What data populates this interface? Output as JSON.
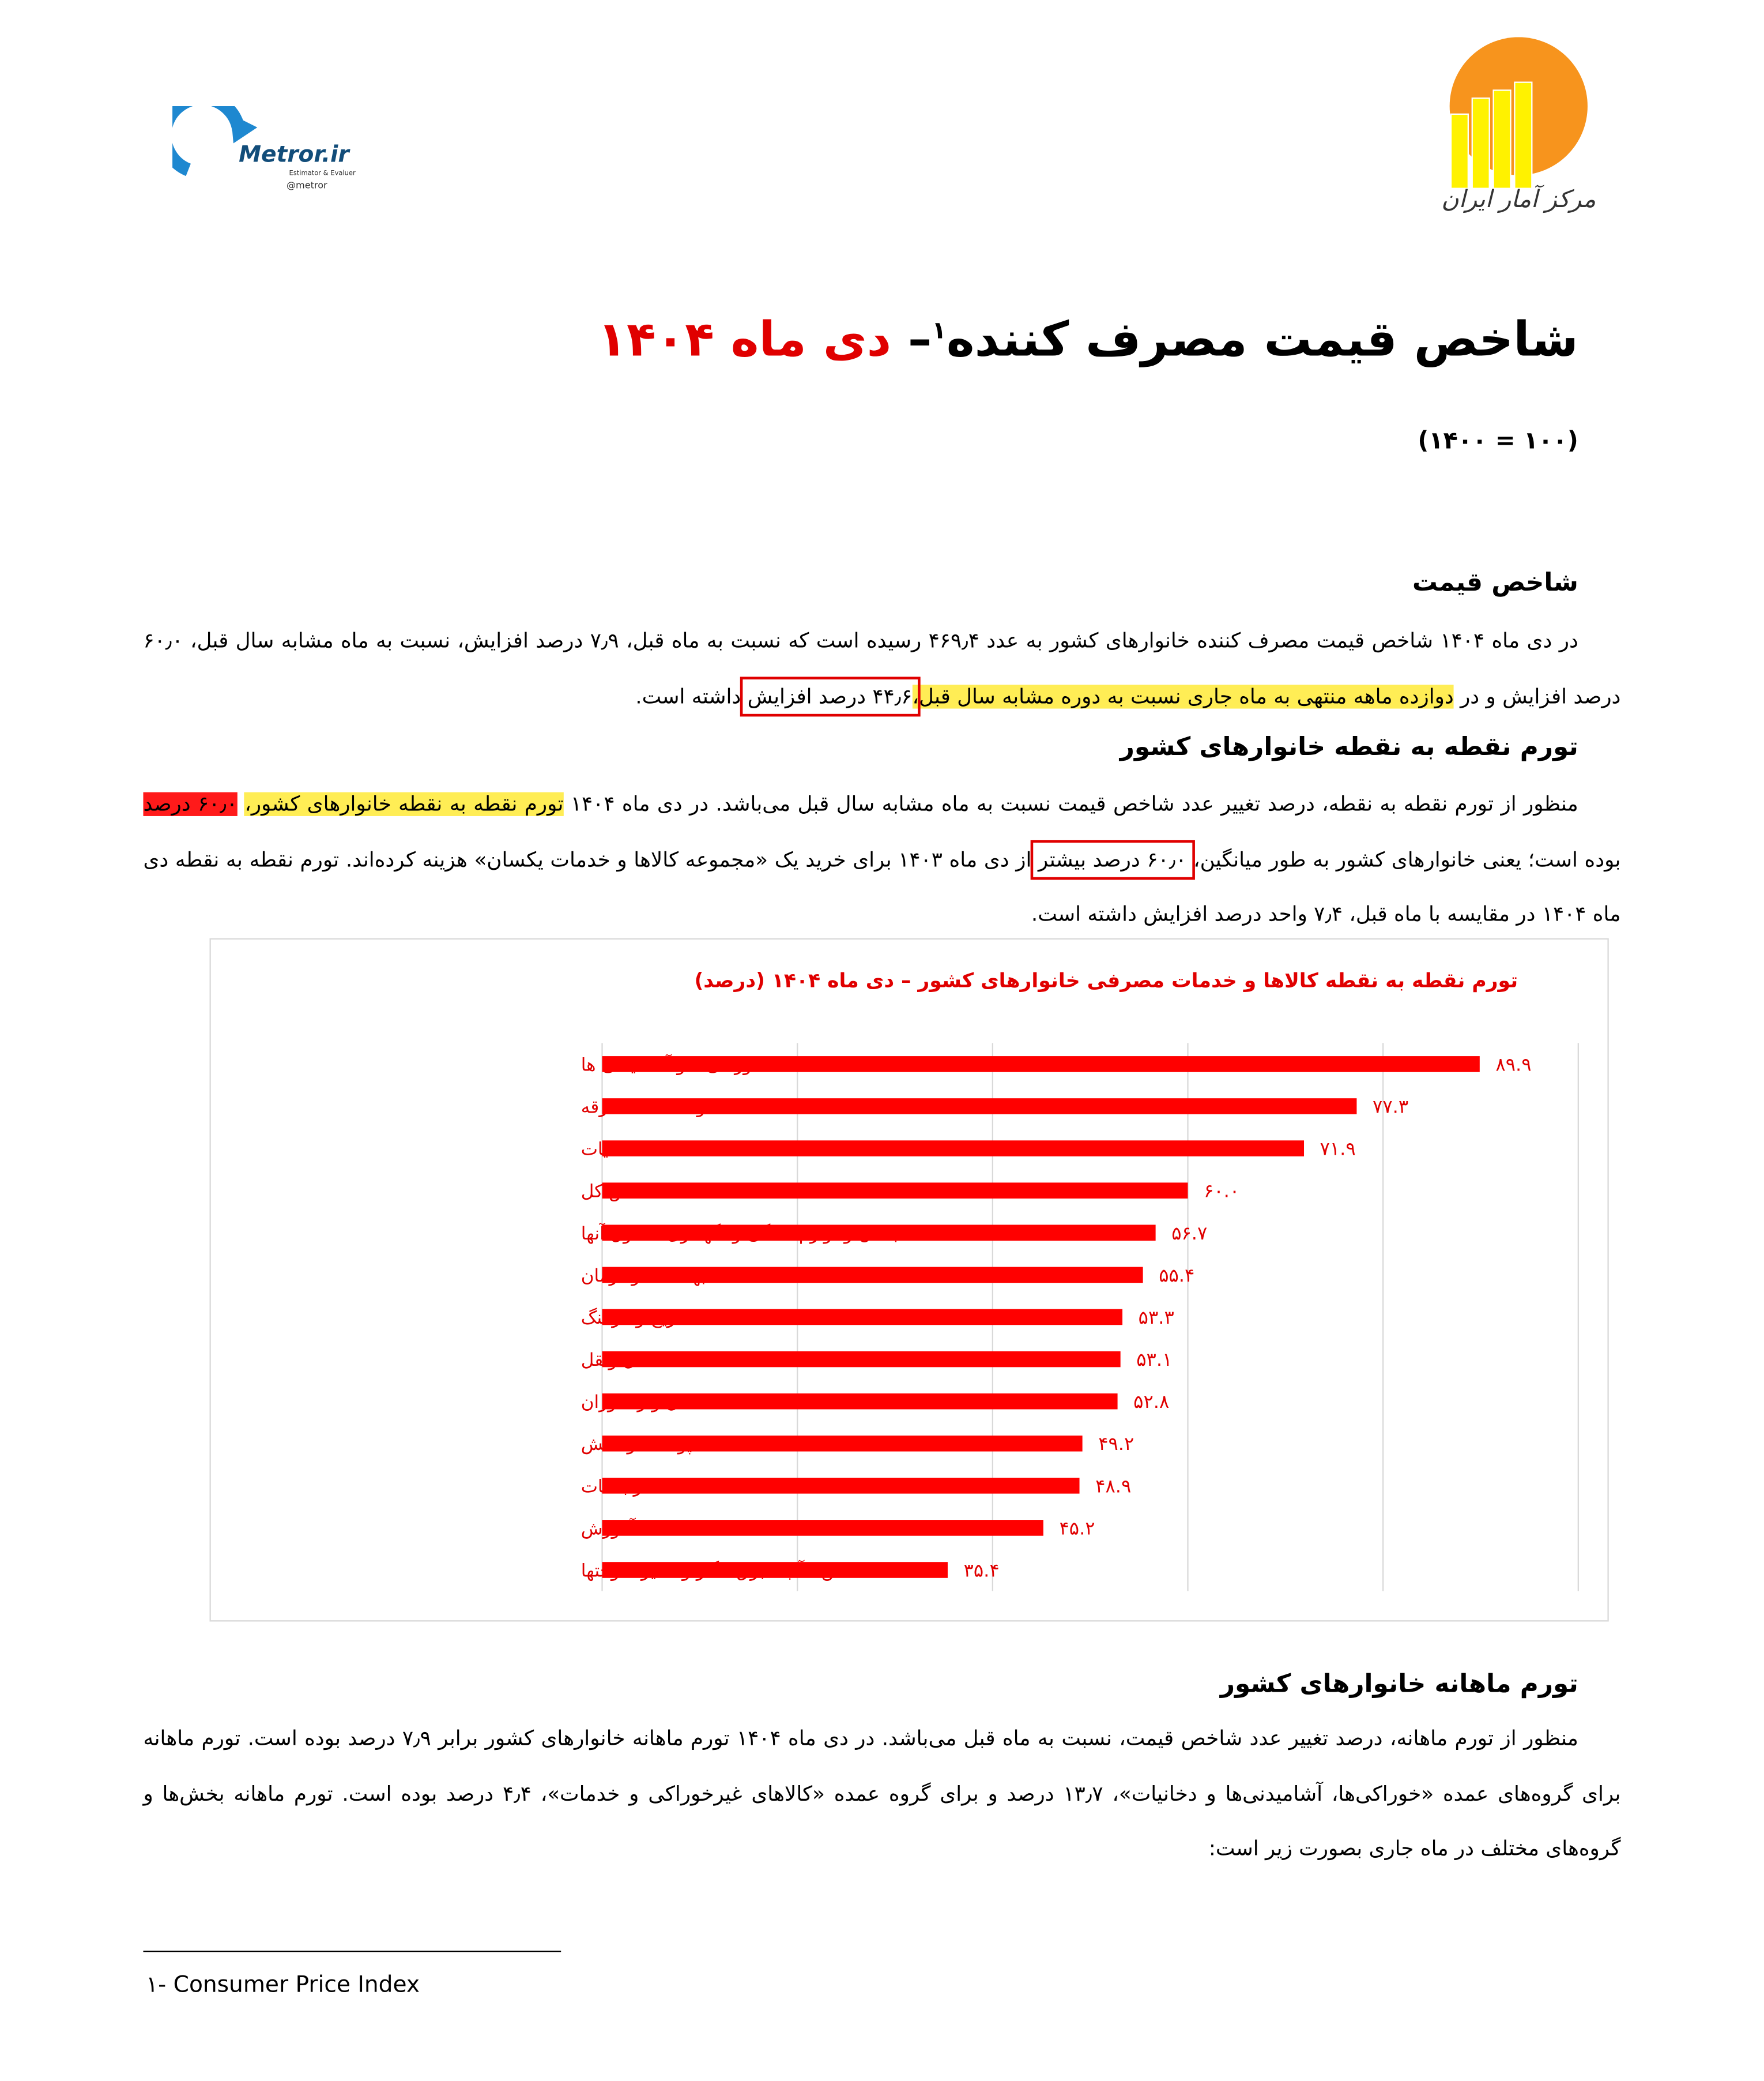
{
  "header": {
    "brand_left": "Metror.ir",
    "brand_left_sub": "Estimator & Evaluer",
    "brand_left_handle": "@metror",
    "brand_right": "مرکز آمار ایران"
  },
  "title": {
    "main": "شاخص قیمت مصرف کننده",
    "note_mark": "۱",
    "dash": "– ",
    "date": "دی ماه ۱۴۰۴"
  },
  "subtitle": "(۱۰۰ = ۱۴۰۰)",
  "sections": [
    {
      "heading": "شاخص قیمت",
      "paragraph": [
        "در دی ماه ۱۴۰۴ شاخص قیمت مصرف کننده خانوارهای کشور به عدد ۴۶۹٫۴ رسیده است که نسبت به ماه قبل، ۷٫۹ درصد افزایش، نسبت به ماه مشابه سال قبل، ۶۰٫۰ درصد افزایش و در ",
        "دوازده ماهه منتهی به ماه جاری نسبت به دوره مشابه سال قبل،",
        "۴۴٫۶ درصد افزایش",
        " داشته است."
      ]
    },
    {
      "heading": "تورم نقطه به نقطه خانوارهای کشور",
      "paragraph": [
        "منظور از تورم نقطه به نقطه، درصد تغییر عدد شاخص قیمت نسبت به ماه مشابه سال قبل می‌باشد. در دی ماه ۱۴۰۴ ",
        "تورم نقطه به نقطه خانوارهای کشور،",
        " ",
        "۶۰٫۰ درصد",
        " بوده است؛ یعنی خانوارهای کشور به طور میانگین، ",
        "۶۰٫۰ درصد بیشتر",
        " از دی ماه ۱۴۰۳ برای خرید یک «مجموعه کالاها و خدمات یکسان» هزینه کرده‌اند. تورم نقطه به نقطه دی ماه ۱۴۰۴ در مقایسه با ماه قبل، ۷٫۴ واحد درصد افزایش داشته است."
      ]
    },
    {
      "heading": "تورم ماهانه خانوارهای کشور",
      "paragraph": [
        "منظور از تورم ماهانه، درصد تغییر عدد شاخص قیمت، نسبت به ماه قبل می‌باشد. در دی ماه ۱۴۰۴ تورم ماهانه خانوارهای کشور برابر ۷٫۹ درصد بوده است. تورم ماهانه برای گروه‌های عمده «خوراکی‌ها، آشامیدنی‌ها و دخانیات»، ۱۳٫۷ درصد و برای گروه عمده «کالاهای غیرخوراکی و خدمات»، ۴٫۴ درصد بوده است. تورم ماهانه بخش‌ها و گروه‌های مختلف در ماه جاری بصورت زیر است:"
      ]
    }
  ],
  "chart_data": {
    "type": "barh",
    "title": "تورم نقطه به نقطه کالاها و خدمات مصرفی خانوارهای کشور – دی ماه ۱۴۰۴ (درصد)",
    "categories": [
      "خوراکی‌ها و آشامیدنی ها",
      "کالاها و خدمات متفرقه",
      "دخانیات",
      "شاخص کل",
      "مبلمان و لوازم خانگی و نگهداری معمول آنها",
      "بهداشت و درمان",
      "تفریح و فرهنگ",
      "حمل ونقل",
      "هتل و رستوران",
      "پوشاک و کفش",
      "ارتباطات",
      "آموزش",
      "مسکن ، آب ، برق ، گاز و سایر سوختها"
    ],
    "values": [
      89.9,
      77.3,
      71.9,
      60.0,
      56.7,
      55.4,
      53.3,
      53.1,
      52.8,
      49.2,
      48.9,
      45.2,
      35.4
    ],
    "value_labels": [
      "۸۹.۹",
      "۷۷.۳",
      "۷۱.۹",
      "۶۰.۰",
      "۵۶.۷",
      "۵۵.۴",
      "۵۳.۳",
      "۵۳.۱",
      "۵۲.۸",
      "۴۹.۲",
      "۴۸.۹",
      "۴۵.۲",
      "۳۵.۴"
    ],
    "color": "#ff0000",
    "xlim": [
      0,
      100
    ],
    "xticks": [
      0,
      20,
      40,
      60,
      80,
      100
    ],
    "grid": true
  },
  "footnote": "۱- Consumer Price Index"
}
